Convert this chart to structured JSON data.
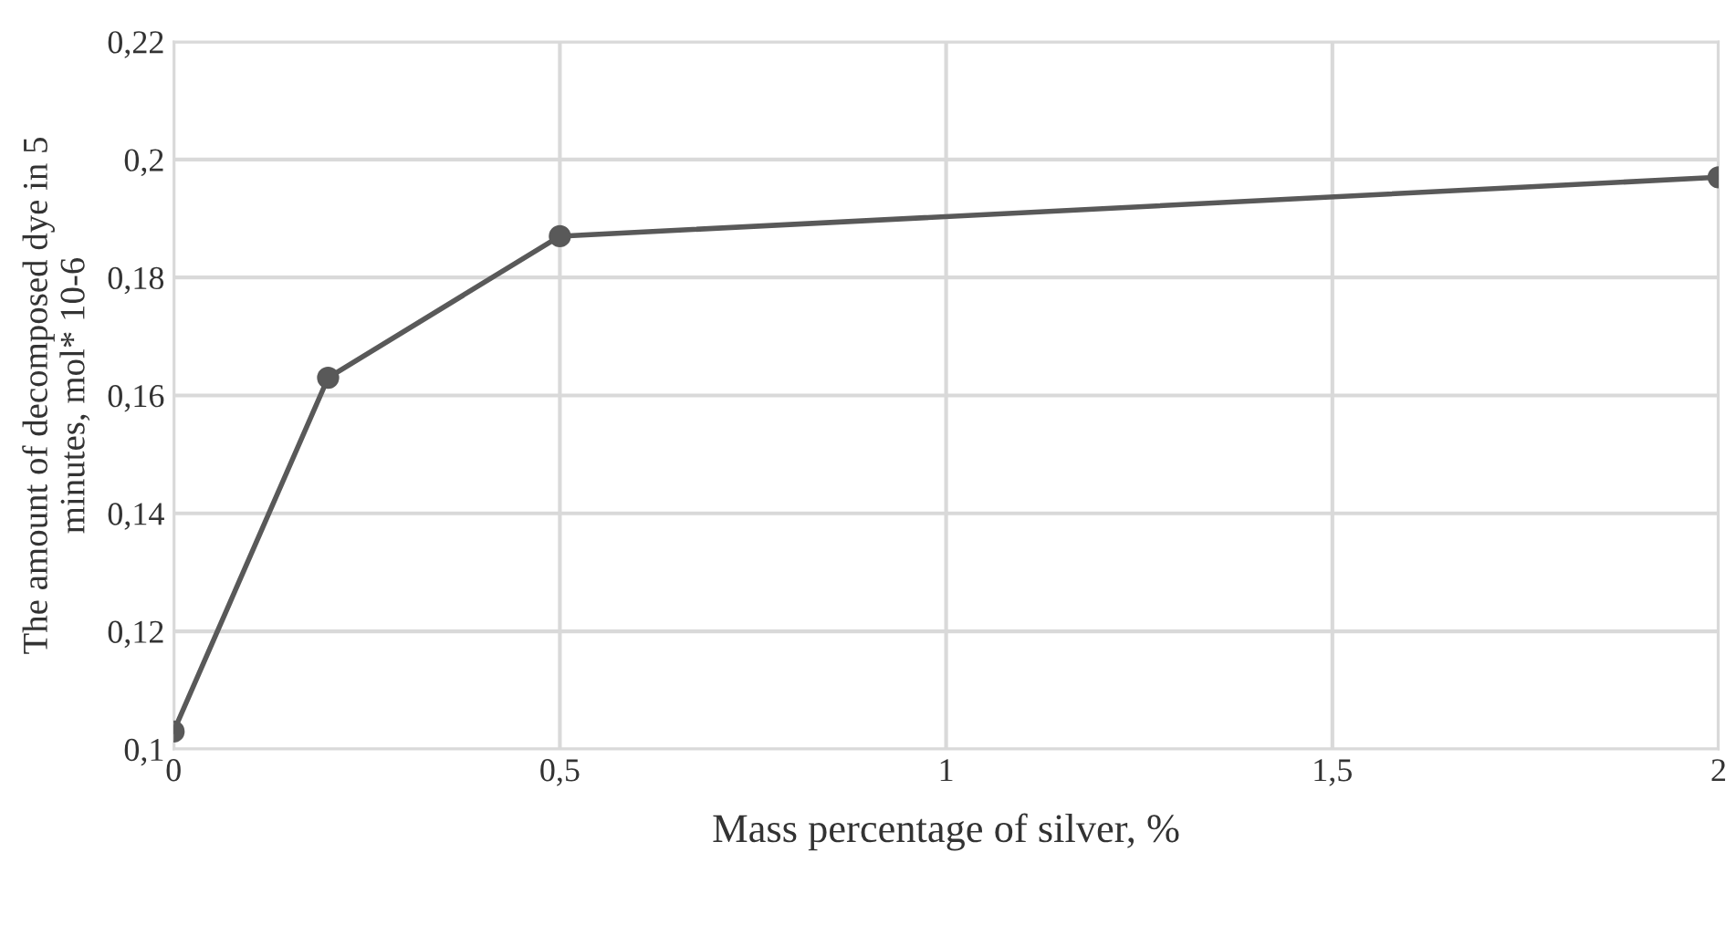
{
  "chart_data": {
    "type": "line",
    "xlabel": "Mass percentage of silver, %",
    "ylabel": "The amount of decomposed dye in 5\nminutes, mol* 10-6",
    "x": [
      0,
      0.2,
      0.5,
      2
    ],
    "series": [
      {
        "color": "#595959",
        "values": [
          0.103,
          0.163,
          0.187,
          0.197
        ]
      }
    ],
    "xlim": [
      0,
      2
    ],
    "xticks": [
      {
        "value": 0,
        "label": "0"
      },
      {
        "value": 0.5,
        "label": "0,5"
      },
      {
        "value": 1,
        "label": "1"
      },
      {
        "value": 1.5,
        "label": "1,5"
      },
      {
        "value": 2,
        "label": "2"
      }
    ],
    "ylim": [
      0.1,
      0.22
    ],
    "yticks": [
      {
        "value": 0.1,
        "label": "0,1"
      },
      {
        "value": 0.12,
        "label": "0,12"
      },
      {
        "value": 0.14,
        "label": "0,14"
      },
      {
        "value": 0.16,
        "label": "0,16"
      },
      {
        "value": 0.18,
        "label": "0,18"
      },
      {
        "value": 0.2,
        "label": "0,2"
      },
      {
        "value": 0.22,
        "label": "0,22"
      }
    ],
    "grid": true,
    "marker": "circle",
    "line_style": "solid",
    "legend": false
  }
}
